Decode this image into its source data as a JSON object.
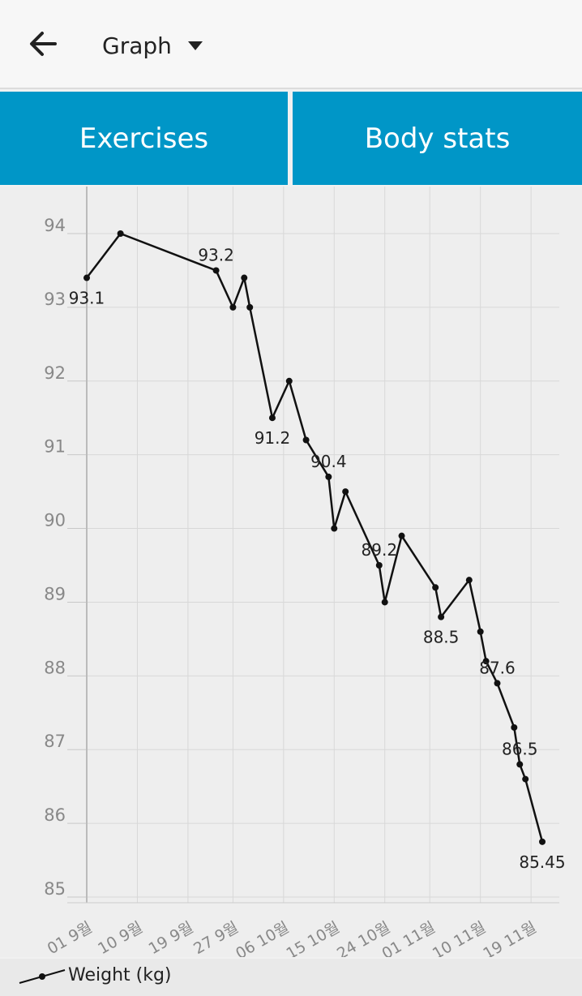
{
  "header": {
    "title": "Graph",
    "back_icon": "arrow-left-icon",
    "dropdown_icon": "caret-down-icon"
  },
  "tabs": [
    {
      "label": "Exercises"
    },
    {
      "label": "Body stats"
    }
  ],
  "colors": {
    "tab_bg": "#0096c7",
    "line": "#111111",
    "grid": "#d6d6d6"
  },
  "chart_data": {
    "type": "line",
    "title": "",
    "xlabel": "",
    "ylabel": "",
    "ylim": [
      85,
      94
    ],
    "yticks": [
      85,
      86,
      87,
      88,
      89,
      90,
      91,
      92,
      93,
      94
    ],
    "xtick_labels": [
      "01 9월",
      "10 9월",
      "19 9월",
      "27 9월",
      "06 10월",
      "15 10월",
      "24 10월",
      "01 11월",
      "10 11월",
      "19 11월"
    ],
    "grid": true,
    "legend_position": "bottom-left",
    "series": [
      {
        "name": "Weight (kg)",
        "points": [
          {
            "x": "2019-09-01",
            "y": 93.4
          },
          {
            "x": "2019-09-07",
            "y": 94.0
          },
          {
            "x": "2019-09-24",
            "y": 93.5
          },
          {
            "x": "2019-09-27",
            "y": 93.0
          },
          {
            "x": "2019-09-29",
            "y": 93.4
          },
          {
            "x": "2019-09-30",
            "y": 93.0
          },
          {
            "x": "2019-10-04",
            "y": 91.5
          },
          {
            "x": "2019-10-07",
            "y": 92.0
          },
          {
            "x": "2019-10-10",
            "y": 91.2
          },
          {
            "x": "2019-10-14",
            "y": 90.7
          },
          {
            "x": "2019-10-15",
            "y": 90.0
          },
          {
            "x": "2019-10-17",
            "y": 90.5
          },
          {
            "x": "2019-10-23",
            "y": 89.5
          },
          {
            "x": "2019-10-24",
            "y": 89.0
          },
          {
            "x": "2019-10-27",
            "y": 89.9
          },
          {
            "x": "2019-11-02",
            "y": 89.2
          },
          {
            "x": "2019-11-03",
            "y": 88.8
          },
          {
            "x": "2019-11-08",
            "y": 89.3
          },
          {
            "x": "2019-11-10",
            "y": 88.6
          },
          {
            "x": "2019-11-11",
            "y": 88.2
          },
          {
            "x": "2019-11-13",
            "y": 87.9
          },
          {
            "x": "2019-11-16",
            "y": 87.3
          },
          {
            "x": "2019-11-17",
            "y": 86.8
          },
          {
            "x": "2019-11-18",
            "y": 86.6
          },
          {
            "x": "2019-11-21",
            "y": 85.75
          }
        ]
      }
    ],
    "annotations": [
      {
        "text": "93.1",
        "x": "2019-09-01",
        "y": 93.4,
        "side": "below"
      },
      {
        "text": "93.2",
        "x": "2019-09-24",
        "y": 93.5,
        "side": "above"
      },
      {
        "text": "91.2",
        "x": "2019-10-04",
        "y": 91.5,
        "side": "below"
      },
      {
        "text": "90.4",
        "x": "2019-10-14",
        "y": 90.7,
        "side": "above"
      },
      {
        "text": "89.2",
        "x": "2019-10-23",
        "y": 89.5,
        "side": "above"
      },
      {
        "text": "88.5",
        "x": "2019-11-03",
        "y": 88.8,
        "side": "below"
      },
      {
        "text": "87.6",
        "x": "2019-11-13",
        "y": 87.9,
        "side": "above"
      },
      {
        "text": "86.5",
        "x": "2019-11-17",
        "y": 86.8,
        "side": "above"
      },
      {
        "text": "85.45",
        "x": "2019-11-21",
        "y": 85.75,
        "side": "below"
      }
    ]
  }
}
